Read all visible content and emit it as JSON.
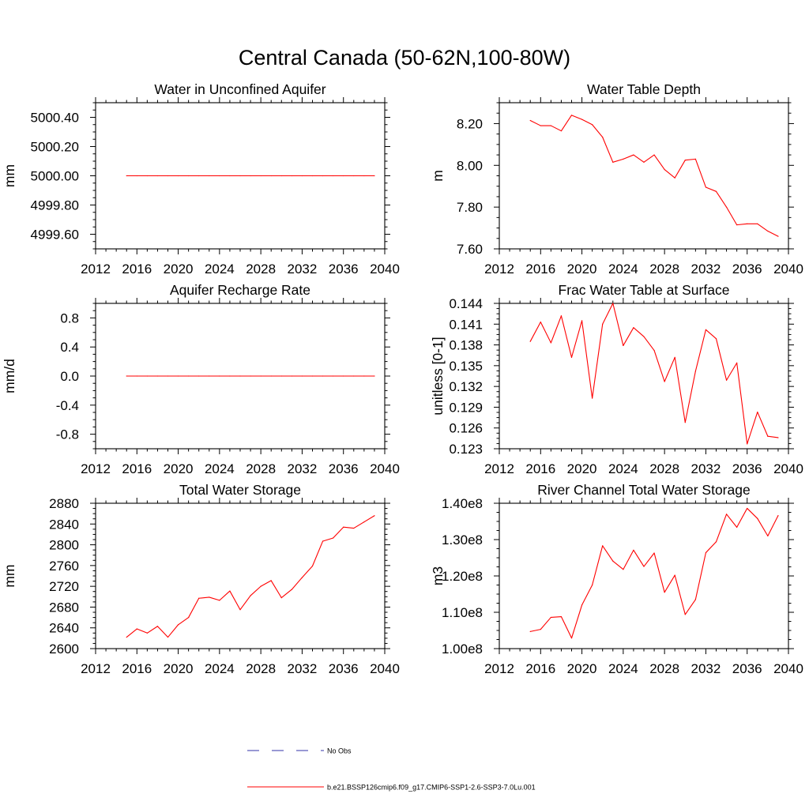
{
  "figure": {
    "title": "Central Canada (50-62N,100-80W)",
    "line_color": "#ff0000",
    "obs_color": "#3333aa"
  },
  "legend": {
    "items": [
      {
        "label": "No Obs",
        "style": "dashed",
        "color": "#3333aa"
      },
      {
        "label": "b.e21.BSSP126cmip6.f09_g17.CMIP6-SSP1-2.6-SSP3-7.0Lu.001",
        "style": "solid",
        "color": "#ff0000"
      }
    ]
  },
  "chart_data": [
    {
      "type": "line",
      "title": "Water in Unconfined Aquifer",
      "ylabel": "mm",
      "xlim": [
        2012,
        2040
      ],
      "ylim": [
        4999.5,
        5000.5
      ],
      "xticks": [
        2012,
        2016,
        2020,
        2024,
        2028,
        2032,
        2036,
        2040
      ],
      "yticks": [
        4999.6,
        4999.8,
        5000.0,
        5000.2,
        5000.4
      ],
      "ytick_labels": [
        "4999.60",
        "4999.80",
        "5000.00",
        "5000.20",
        "5000.40"
      ],
      "grid": false,
      "series": [
        {
          "x": [
            2015,
            2016,
            2017,
            2018,
            2019,
            2020,
            2021,
            2022,
            2023,
            2024,
            2025,
            2026,
            2027,
            2028,
            2029,
            2030,
            2031,
            2032,
            2033,
            2034,
            2035,
            2036,
            2037,
            2038,
            2039
          ],
          "values": [
            5000,
            5000,
            5000,
            5000,
            5000,
            5000,
            5000,
            5000,
            5000,
            5000,
            5000,
            5000,
            5000,
            5000,
            5000,
            5000,
            5000,
            5000,
            5000,
            5000,
            5000,
            5000,
            5000,
            5000,
            5000
          ]
        }
      ]
    },
    {
      "type": "line",
      "title": "Water Table Depth",
      "ylabel": "m",
      "xlim": [
        2012,
        2040
      ],
      "ylim": [
        7.6,
        8.3
      ],
      "xticks": [
        2012,
        2016,
        2020,
        2024,
        2028,
        2032,
        2036,
        2040
      ],
      "yticks": [
        7.6,
        7.8,
        8.0,
        8.2
      ],
      "ytick_labels": [
        "7.60",
        "7.80",
        "8.00",
        "8.20"
      ],
      "grid": false,
      "series": [
        {
          "x": [
            2015,
            2016,
            2017,
            2018,
            2019,
            2020,
            2021,
            2022,
            2023,
            2024,
            2025,
            2026,
            2027,
            2028,
            2029,
            2030,
            2031,
            2032,
            2033,
            2034,
            2035,
            2036,
            2037,
            2038,
            2039
          ],
          "values": [
            8.215,
            8.19,
            8.19,
            8.165,
            8.24,
            8.22,
            8.195,
            8.135,
            8.015,
            8.03,
            8.05,
            8.015,
            8.05,
            7.98,
            7.94,
            8.025,
            8.03,
            7.895,
            7.875,
            7.8,
            7.715,
            7.72,
            7.72,
            7.685,
            7.66
          ]
        }
      ]
    },
    {
      "type": "line",
      "title": "Aquifer Recharge Rate",
      "ylabel": "mm/d",
      "xlim": [
        2012,
        2040
      ],
      "ylim": [
        -1.0,
        1.0
      ],
      "xticks": [
        2012,
        2016,
        2020,
        2024,
        2028,
        2032,
        2036,
        2040
      ],
      "yticks": [
        -0.8,
        -0.4,
        0.0,
        0.4,
        0.8
      ],
      "ytick_labels": [
        "-0.8",
        "-0.4",
        "0.0",
        "0.4",
        "0.8"
      ],
      "grid": false,
      "series": [
        {
          "x": [
            2015,
            2016,
            2017,
            2018,
            2019,
            2020,
            2021,
            2022,
            2023,
            2024,
            2025,
            2026,
            2027,
            2028,
            2029,
            2030,
            2031,
            2032,
            2033,
            2034,
            2035,
            2036,
            2037,
            2038,
            2039
          ],
          "values": [
            0,
            0,
            0,
            0,
            0,
            0,
            0,
            0,
            0,
            0,
            0,
            0,
            0,
            0,
            0,
            0,
            0,
            0,
            0,
            0,
            0,
            0,
            0,
            0,
            0
          ]
        }
      ]
    },
    {
      "type": "line",
      "title": "Frac Water Table at Surface",
      "ylabel": "unitless [0-1]",
      "xlim": [
        2012,
        2040
      ],
      "ylim": [
        0.123,
        0.144
      ],
      "xticks": [
        2012,
        2016,
        2020,
        2024,
        2028,
        2032,
        2036,
        2040
      ],
      "yticks": [
        0.123,
        0.126,
        0.129,
        0.132,
        0.135,
        0.138,
        0.141,
        0.144
      ],
      "ytick_labels": [
        "0.123",
        "0.126",
        "0.129",
        "0.132",
        "0.135",
        "0.138",
        "0.141",
        "0.144"
      ],
      "grid": false,
      "series": [
        {
          "x": [
            2015,
            2016,
            2017,
            2018,
            2019,
            2020,
            2021,
            2022,
            2023,
            2024,
            2025,
            2026,
            2027,
            2028,
            2029,
            2030,
            2031,
            2032,
            2033,
            2034,
            2035,
            2036,
            2037,
            2038,
            2039
          ],
          "values": [
            0.1385,
            0.1413,
            0.1383,
            0.1422,
            0.1362,
            0.1415,
            0.1303,
            0.141,
            0.144,
            0.1379,
            0.1405,
            0.1392,
            0.1372,
            0.1327,
            0.1362,
            0.1268,
            0.1342,
            0.1402,
            0.1389,
            0.1329,
            0.1354,
            0.1237,
            0.1283,
            0.1248,
            0.1246
          ]
        }
      ]
    },
    {
      "type": "line",
      "title": "Total Water Storage",
      "ylabel": "mm",
      "xlim": [
        2012,
        2040
      ],
      "ylim": [
        2600,
        2880
      ],
      "xticks": [
        2012,
        2016,
        2020,
        2024,
        2028,
        2032,
        2036,
        2040
      ],
      "yticks": [
        2600,
        2640,
        2680,
        2720,
        2760,
        2800,
        2840,
        2880
      ],
      "ytick_labels": [
        "2600",
        "2640",
        "2680",
        "2720",
        "2760",
        "2800",
        "2840",
        "2880"
      ],
      "grid": false,
      "series": [
        {
          "x": [
            2015,
            2016,
            2017,
            2018,
            2019,
            2020,
            2021,
            2022,
            2023,
            2024,
            2025,
            2026,
            2027,
            2028,
            2029,
            2030,
            2031,
            2032,
            2033,
            2034,
            2035,
            2036,
            2037,
            2038,
            2039
          ],
          "values": [
            2622,
            2638,
            2630,
            2643,
            2622,
            2646,
            2660,
            2697,
            2699,
            2693,
            2711,
            2675,
            2702,
            2720,
            2731,
            2698,
            2714,
            2737,
            2759,
            2807,
            2813,
            2834,
            2832,
            2844,
            2856
          ]
        }
      ]
    },
    {
      "type": "line",
      "title": "River Channel Total Water Storage",
      "ylabel": "m3",
      "xlim": [
        2012,
        2040
      ],
      "ylim": [
        100000000,
        140000000
      ],
      "xticks": [
        2012,
        2016,
        2020,
        2024,
        2028,
        2032,
        2036,
        2040
      ],
      "yticks": [
        100000000,
        110000000,
        120000000,
        130000000,
        140000000
      ],
      "ytick_labels": [
        "1.00e8",
        "1.10e8",
        "1.20e8",
        "1.30e8",
        "1.40e8"
      ],
      "grid": false,
      "series": [
        {
          "x": [
            2015,
            2016,
            2017,
            2018,
            2019,
            2020,
            2021,
            2022,
            2023,
            2024,
            2025,
            2026,
            2027,
            2028,
            2029,
            2030,
            2031,
            2032,
            2033,
            2034,
            2035,
            2036,
            2037,
            2038,
            2039
          ],
          "values": [
            104700000,
            105300000,
            108600000,
            108800000,
            102900000,
            112000000,
            117500000,
            128300000,
            124100000,
            121800000,
            127100000,
            122600000,
            126300000,
            115500000,
            120200000,
            109400000,
            113500000,
            126400000,
            129400000,
            137000000,
            133400000,
            138600000,
            135800000,
            131000000,
            136600000
          ]
        }
      ]
    }
  ]
}
